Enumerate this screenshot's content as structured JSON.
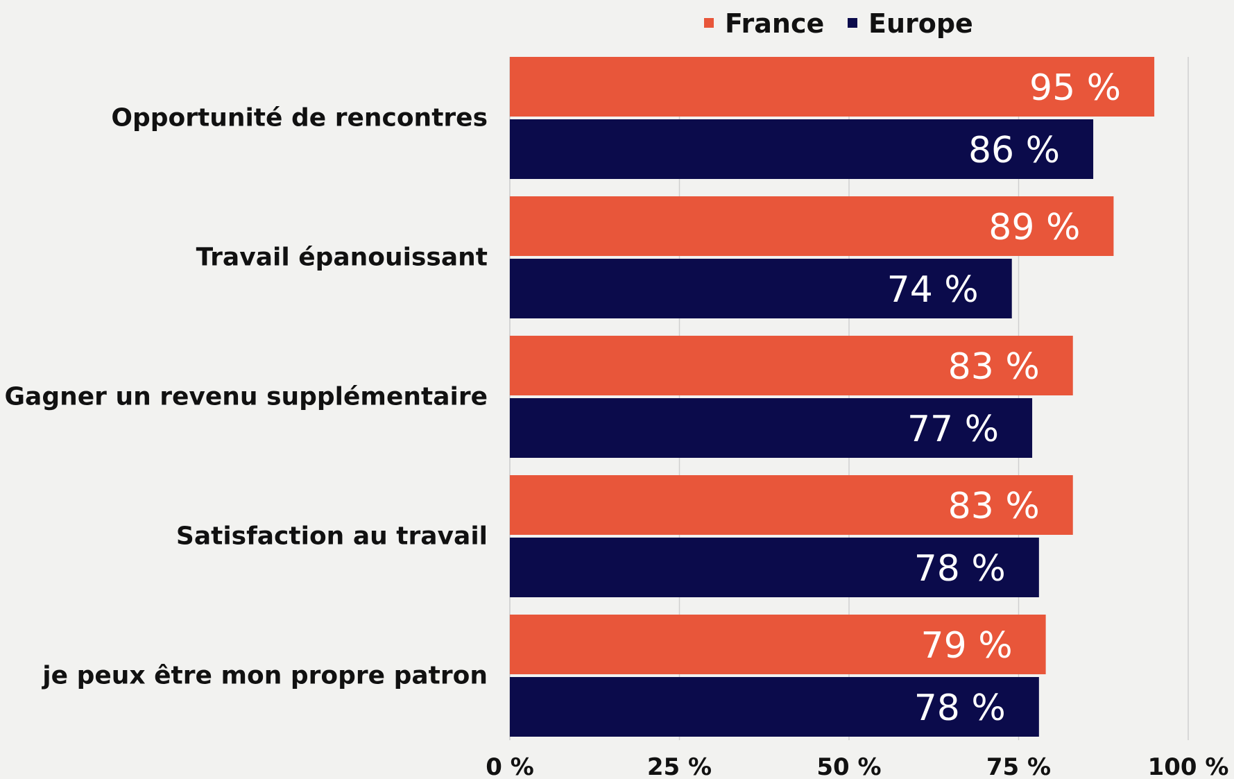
{
  "chart_data": {
    "type": "barh",
    "categories": [
      "Opportunité de rencontres",
      "Travail épanouissant",
      "Gagner un revenu supplémentaire",
      "Satisfaction au travail",
      "je peux être mon propre patron"
    ],
    "series": [
      {
        "name": "France",
        "color": "#e8563a",
        "values": [
          95,
          89,
          83,
          83,
          79
        ],
        "value_labels": [
          "95 %",
          "89 %",
          "83 %",
          "83 %",
          "79 %"
        ]
      },
      {
        "name": "Europe",
        "color": "#0b0b4b",
        "values": [
          86,
          74,
          77,
          78,
          78
        ],
        "value_labels": [
          "86 %",
          "74 %",
          "77 %",
          "78 %",
          "78 %"
        ]
      }
    ],
    "xlim": [
      0,
      100
    ],
    "xticks": [
      {
        "value": 0,
        "label": "0 %"
      },
      {
        "value": 25,
        "label": "25 %"
      },
      {
        "value": 50,
        "label": "50 %"
      },
      {
        "value": 75,
        "label": "75 %"
      },
      {
        "value": 100,
        "label": "100 %"
      }
    ],
    "grid": true,
    "legend": "top"
  }
}
